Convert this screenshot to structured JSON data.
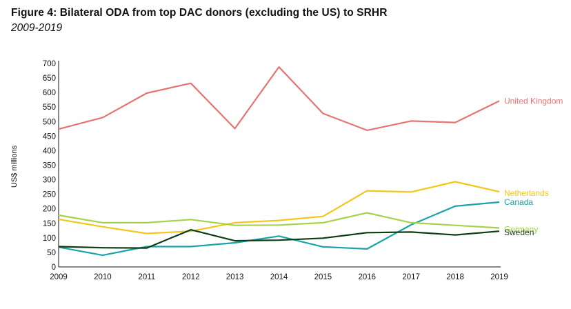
{
  "header": {
    "title": "Figure 4: Bilateral ODA from top DAC donors (excluding the US) to SRHR",
    "subtitle": "2009-2019"
  },
  "chart_data": {
    "type": "line",
    "title": "Figure 4: Bilateral ODA from top DAC donors (excluding the US) to SRHR",
    "subtitle": "2009-2019",
    "xlabel": "",
    "ylabel": "US$ millions",
    "x": [
      "2009",
      "2010",
      "2011",
      "2012",
      "2013",
      "2014",
      "2015",
      "2016",
      "2017",
      "2018",
      "2019"
    ],
    "ylim": [
      0,
      700
    ],
    "yticks": [
      0,
      50,
      100,
      150,
      200,
      250,
      300,
      350,
      400,
      450,
      500,
      550,
      600,
      650,
      700
    ],
    "grid": false,
    "legend": "direct labels at line ends",
    "series": [
      {
        "name": "United Kingdom",
        "color": "#e57373",
        "values": [
          474,
          514,
          598,
          632,
          476,
          688,
          528,
          470,
          502,
          497,
          571
        ]
      },
      {
        "name": "Netherlands",
        "color": "#f5c518",
        "values": [
          164,
          138,
          115,
          123,
          152,
          160,
          174,
          262,
          258,
          293,
          259
        ]
      },
      {
        "name": "Canada",
        "color": "#1aa3a8",
        "values": [
          68,
          40,
          70,
          70,
          83,
          106,
          69,
          62,
          145,
          209,
          223
        ]
      },
      {
        "name": "Germany",
        "color": "#a6d14b",
        "values": [
          178,
          152,
          152,
          163,
          143,
          144,
          152,
          186,
          152,
          143,
          134
        ]
      },
      {
        "name": "Sweden",
        "color": "#0f3d12",
        "values": [
          70,
          66,
          65,
          128,
          90,
          92,
          99,
          118,
          120,
          110,
          123
        ]
      }
    ]
  }
}
